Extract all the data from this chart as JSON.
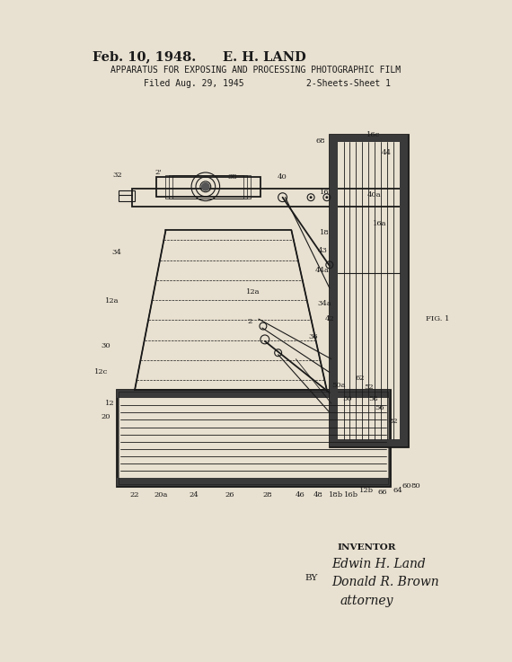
{
  "bg_color": "#e8e0d0",
  "text_color": "#1a1a1a",
  "date": "Feb. 10, 1948.",
  "inventor_name": "E. H. LAND",
  "patent_title": "APPARATUS FOR EXPOSING AND PROCESSING PHOTOGRAPHIC FILM",
  "filed": "Filed Aug. 29, 1945",
  "sheets": "2-Sheets-Sheet 1",
  "fig_label": "FIG. 1",
  "inventor_label": "INVENTOR",
  "by_label": "BY",
  "signature1": "Edwin H. Land",
  "signature2": "Donald R. Brown",
  "signature3": "attorney"
}
